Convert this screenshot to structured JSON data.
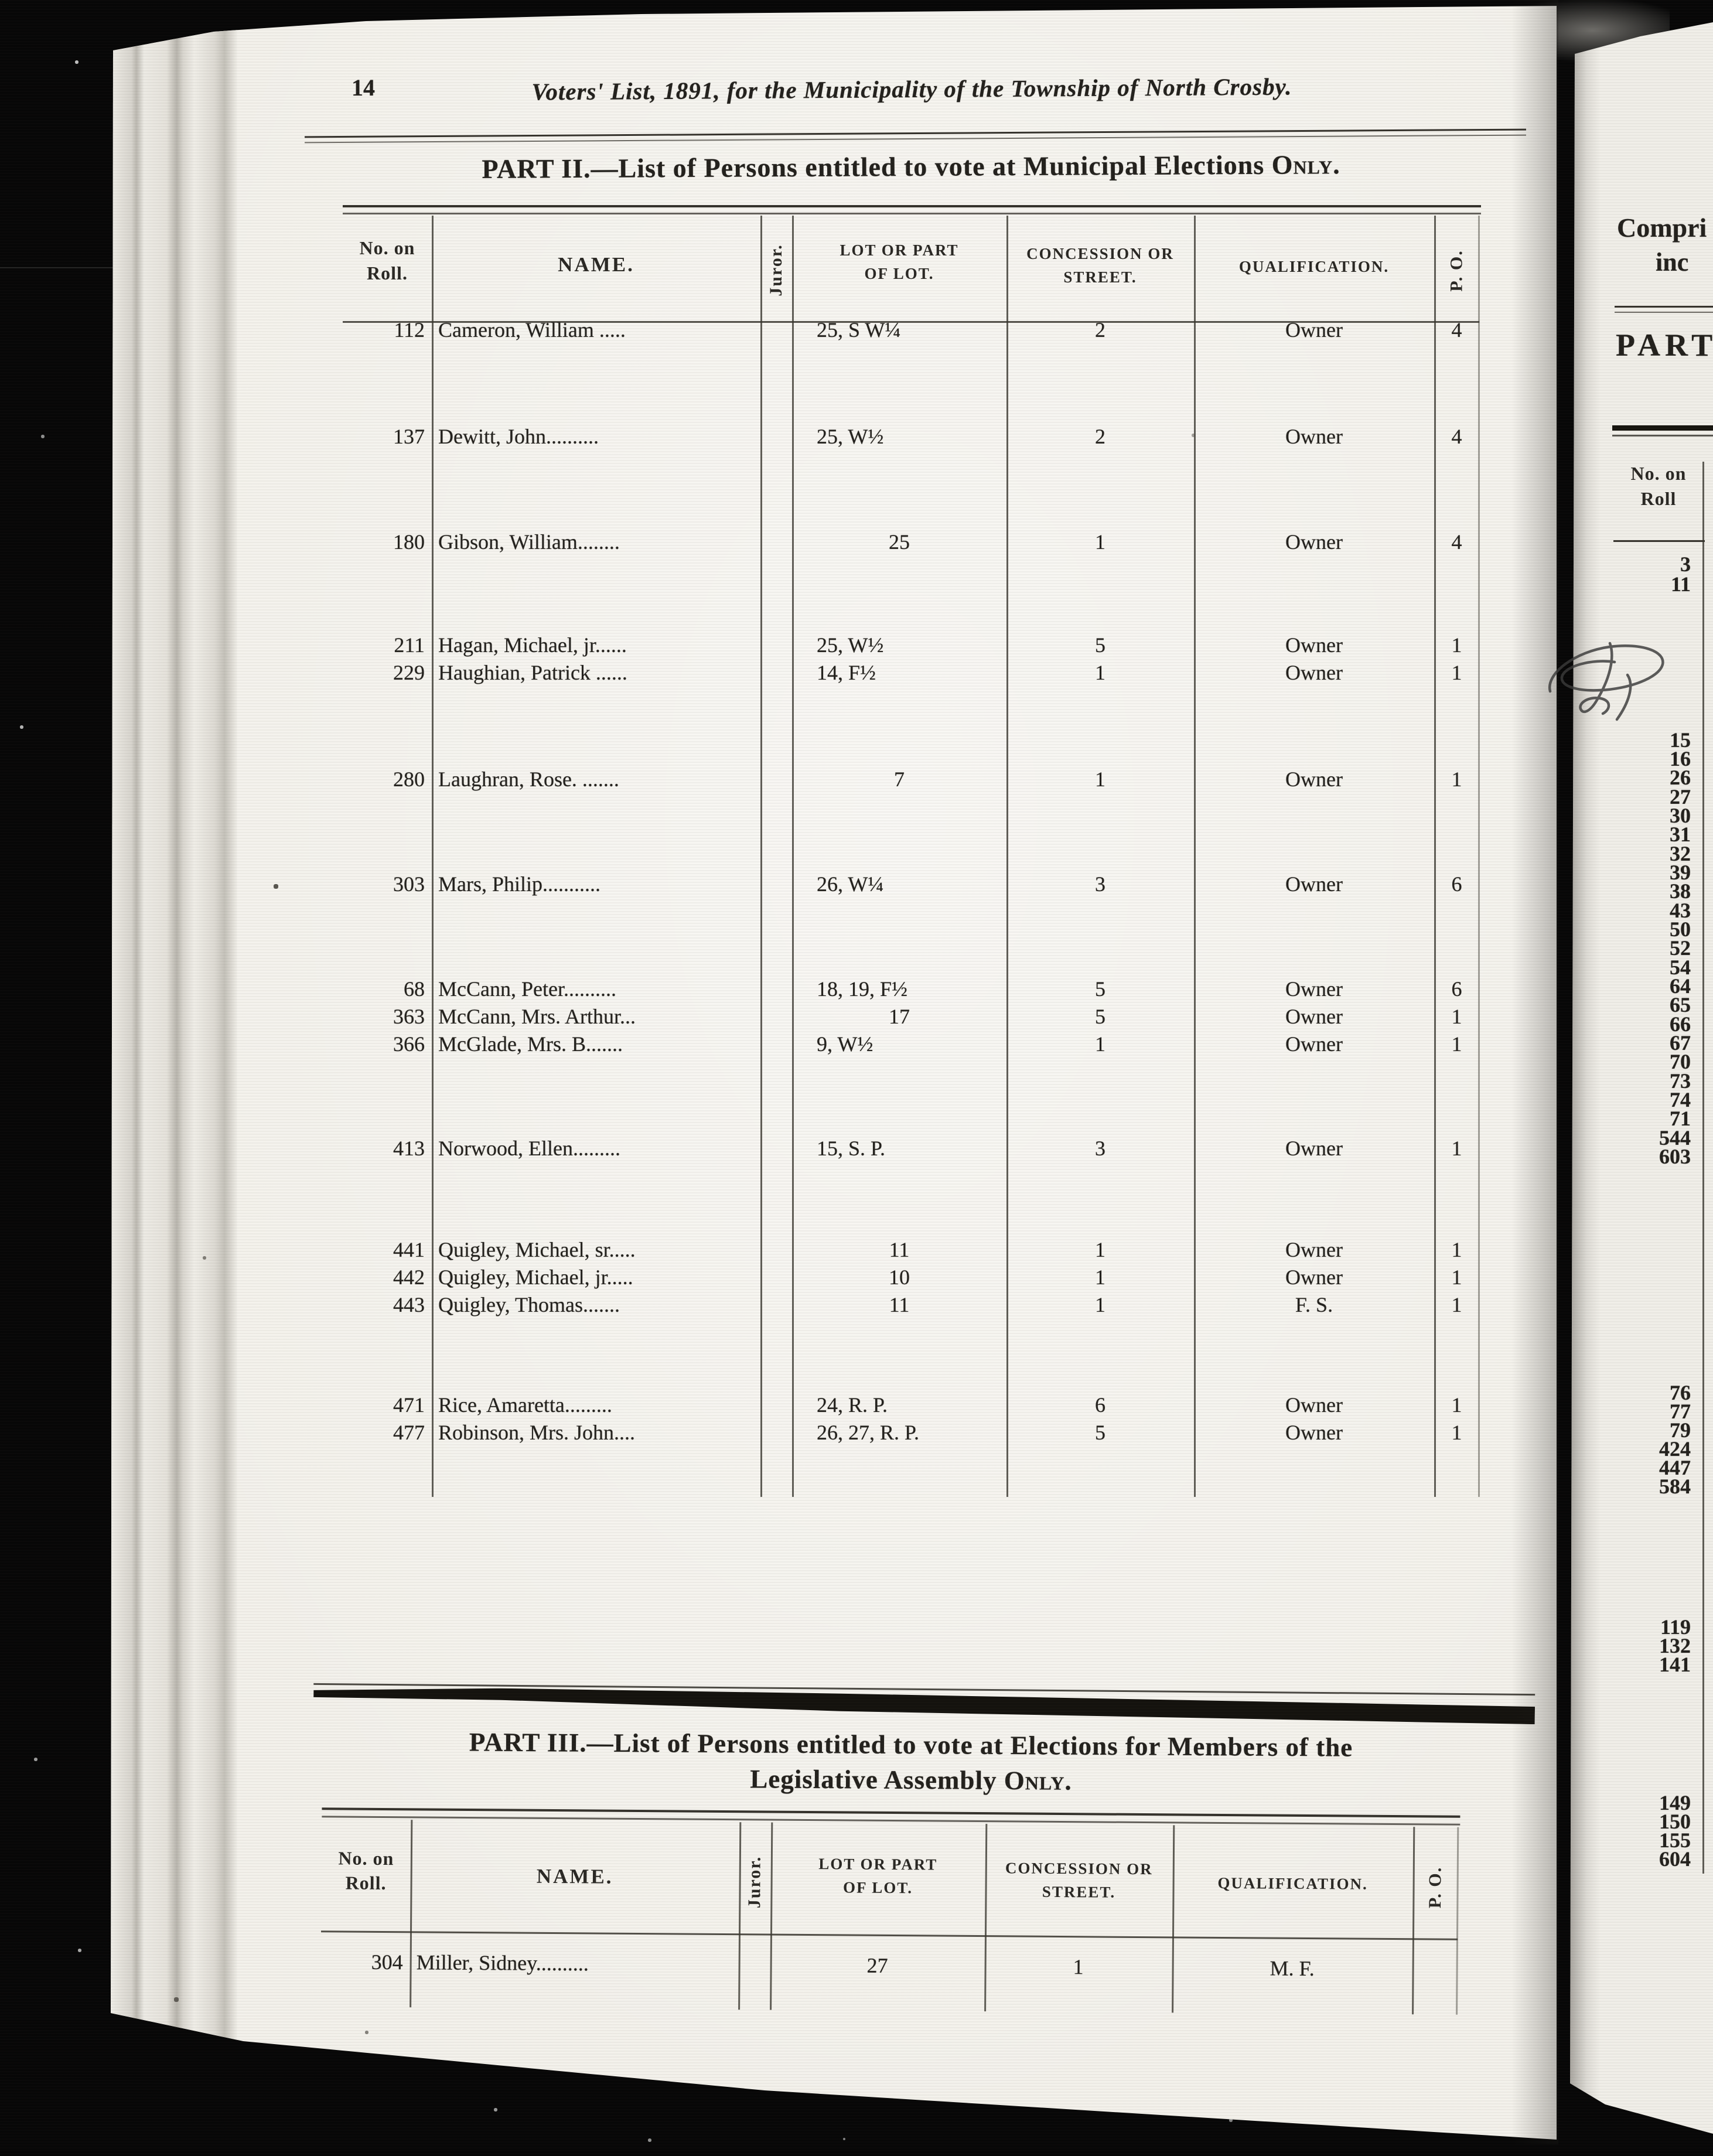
{
  "page_number": "14",
  "running_title": "Voters' List, 1891, for the Municipality of the Township of North Crosby.",
  "columns": {
    "roll_l1": "No. on",
    "roll_l2": "Roll.",
    "name": "NAME.",
    "juror": "Juror.",
    "lot_l1": "LOT OR PART",
    "lot_l2": "OF LOT.",
    "concession_l1": "CONCESSION OR",
    "concession_l2": "STREET.",
    "qualification": "QUALIFICATION.",
    "po": "P. O."
  },
  "part2": {
    "title_main": "PART II.—List of Persons entitled to vote at Municipal Elections ",
    "title_only": "Only.",
    "rows": [
      {
        "roll": "112",
        "name": "Cameron, William .....",
        "lot": "25, S W¼",
        "concession": "2",
        "qualification": "Owner",
        "po": "4"
      },
      {
        "roll": "137",
        "name": "Dewitt, John..........",
        "lot": "25, W½",
        "concession": "2",
        "qualification": "Owner",
        "po": "4"
      },
      {
        "roll": "180",
        "name": "Gibson, William........",
        "lot": "25",
        "concession": "1",
        "qualification": "Owner",
        "po": "4"
      },
      {
        "roll": "211",
        "name": "Hagan, Michael, jr......",
        "lot": "25, W½",
        "concession": "5",
        "qualification": "Owner",
        "po": "1"
      },
      {
        "roll": "229",
        "name": "Haughian, Patrick ......",
        "lot": "14, F½",
        "concession": "1",
        "qualification": "Owner",
        "po": "1"
      },
      {
        "roll": "280",
        "name": "Laughran, Rose. .......",
        "lot": "7",
        "concession": "1",
        "qualification": "Owner",
        "po": "1"
      },
      {
        "roll": "303",
        "name": "Mars, Philip...........",
        "lot": "26, W¼",
        "concession": "3",
        "qualification": "Owner",
        "po": "6"
      },
      {
        "roll": "68",
        "name": "McCann, Peter..........",
        "lot": "18, 19, F½",
        "concession": "5",
        "qualification": "Owner",
        "po": "6"
      },
      {
        "roll": "363",
        "name": "McCann, Mrs. Arthur...",
        "lot": "17",
        "concession": "5",
        "qualification": "Owner",
        "po": "1"
      },
      {
        "roll": "366",
        "name": "McGlade, Mrs. B.......",
        "lot": "9, W½",
        "concession": "1",
        "qualification": "Owner",
        "po": "1"
      },
      {
        "roll": "413",
        "name": "Norwood, Ellen.........",
        "lot": "15, S. P.",
        "concession": "3",
        "qualification": "Owner",
        "po": "1"
      },
      {
        "roll": "441",
        "name": "Quigley, Michael, sr.....",
        "lot": "11",
        "concession": "1",
        "qualification": "Owner",
        "po": "1"
      },
      {
        "roll": "442",
        "name": "Quigley, Michael, jr.....",
        "lot": "10",
        "concession": "1",
        "qualification": "Owner",
        "po": "1"
      },
      {
        "roll": "443",
        "name": "Quigley, Thomas.......",
        "lot": "11",
        "concession": "1",
        "qualification": "F. S.",
        "po": "1"
      },
      {
        "roll": "471",
        "name": "Rice, Amaretta.........",
        "lot": "24, R. P.",
        "concession": "6",
        "qualification": "Owner",
        "po": "1"
      },
      {
        "roll": "477",
        "name": "Robinson, Mrs. John....",
        "lot": "26, 27, R. P.",
        "concession": "5",
        "qualification": "Owner",
        "po": "1"
      }
    ]
  },
  "part3": {
    "title_line1": "PART III.—List of Persons entitled to vote at Elections for Members of the",
    "title_line2_main": "Legislative Assembly ",
    "title_line2_only": "Only.",
    "rows": [
      {
        "roll": "304",
        "name": "Miller, Sidney..........",
        "lot": "27",
        "concession": "1",
        "qualification": "M. F.",
        "po": ""
      }
    ]
  },
  "right_page": {
    "fragment_line1": "Compri",
    "fragment_line2": "inc",
    "fragment_part": "PART",
    "roll_l1": "No. on",
    "roll_l2": "Roll",
    "number_groups": [
      [
        "3",
        "11"
      ],
      [
        "15",
        "16",
        "26",
        "27",
        "30",
        "31",
        "32",
        "39",
        "38",
        "43",
        "50",
        "52",
        "54",
        "64",
        "65",
        "66",
        "67",
        "70",
        "73",
        "74",
        "71",
        "544",
        "603"
      ],
      [
        "76",
        "77",
        "79",
        "424",
        "447",
        "584"
      ],
      [
        "119",
        "132",
        "141"
      ],
      [
        "149",
        "150",
        "155",
        "604"
      ]
    ]
  }
}
